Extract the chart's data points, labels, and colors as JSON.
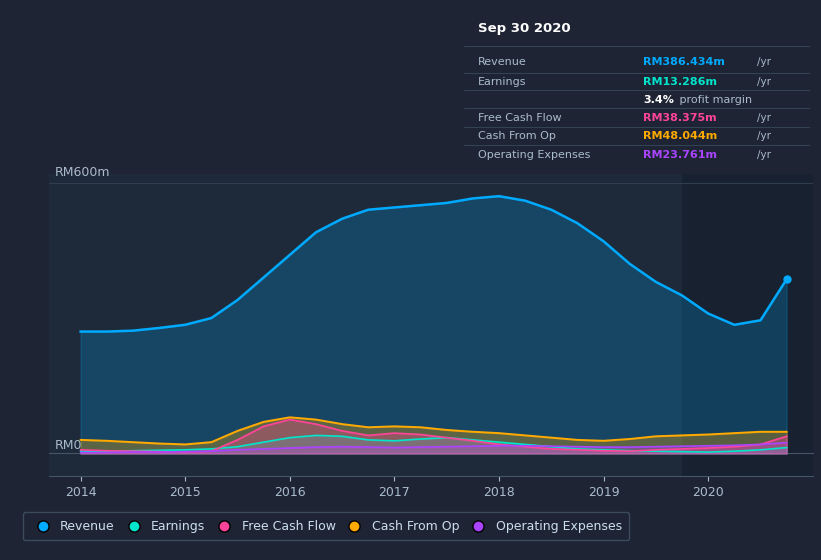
{
  "bg_color": "#1e2433",
  "plot_bg_color": "#1e2a3a",
  "darker_bg": "#16202e",
  "ylabel": "RM600m",
  "y0label": "RM0",
  "x_min": 2013.7,
  "x_max": 2021.0,
  "y_min": -50,
  "y_max": 620,
  "highlight_start": 2019.75,
  "highlight_end": 2021.0,
  "revenue_color": "#00aaff",
  "earnings_color": "#00e5cc",
  "fcf_color": "#ff4499",
  "cashfromop_color": "#ffaa00",
  "opex_color": "#aa44ff",
  "legend_labels": [
    "Revenue",
    "Earnings",
    "Free Cash Flow",
    "Cash From Op",
    "Operating Expenses"
  ],
  "legend_colors": [
    "#00aaff",
    "#00e5cc",
    "#ff4499",
    "#ffaa00",
    "#aa44ff"
  ],
  "info_box": {
    "title": "Sep 30 2020",
    "revenue_label": "Revenue",
    "revenue_value": "RM386.434m",
    "revenue_color": "#00aaff",
    "earnings_label": "Earnings",
    "earnings_value": "RM13.286m",
    "earnings_color": "#00e5cc",
    "fcf_label": "Free Cash Flow",
    "fcf_value": "RM38.375m",
    "fcf_color": "#ff4499",
    "cashop_label": "Cash From Op",
    "cashop_value": "RM48.044m",
    "cashop_color": "#ffaa00",
    "opex_label": "Operating Expenses",
    "opex_value": "RM23.761m",
    "opex_color": "#aa44ff"
  },
  "x_years": [
    2014.0,
    2014.25,
    2014.5,
    2014.75,
    2015.0,
    2015.25,
    2015.5,
    2015.75,
    2016.0,
    2016.25,
    2016.5,
    2016.75,
    2017.0,
    2017.25,
    2017.5,
    2017.75,
    2018.0,
    2018.25,
    2018.5,
    2018.75,
    2019.0,
    2019.25,
    2019.5,
    2019.75,
    2020.0,
    2020.25,
    2020.5,
    2020.75
  ],
  "revenue": [
    270,
    270,
    272,
    278,
    285,
    300,
    340,
    390,
    440,
    490,
    520,
    540,
    545,
    550,
    555,
    565,
    570,
    560,
    540,
    510,
    470,
    420,
    380,
    350,
    310,
    285,
    295,
    386
  ],
  "earnings": [
    5,
    5,
    6,
    7,
    8,
    10,
    15,
    25,
    35,
    40,
    38,
    30,
    28,
    32,
    35,
    30,
    25,
    20,
    15,
    10,
    8,
    6,
    5,
    4,
    3,
    5,
    8,
    13
  ],
  "fcf": [
    8,
    6,
    5,
    4,
    3,
    5,
    30,
    60,
    75,
    65,
    50,
    40,
    45,
    42,
    35,
    28,
    20,
    15,
    10,
    8,
    6,
    5,
    8,
    10,
    12,
    15,
    20,
    38
  ],
  "cashfromop": [
    30,
    28,
    25,
    22,
    20,
    25,
    50,
    70,
    80,
    75,
    65,
    58,
    60,
    58,
    52,
    48,
    45,
    40,
    35,
    30,
    28,
    32,
    38,
    40,
    42,
    45,
    48,
    48
  ],
  "opex": [
    2,
    2,
    3,
    3,
    4,
    5,
    8,
    10,
    12,
    14,
    15,
    14,
    13,
    14,
    15,
    16,
    17,
    17,
    16,
    15,
    14,
    14,
    15,
    16,
    17,
    18,
    20,
    24
  ]
}
